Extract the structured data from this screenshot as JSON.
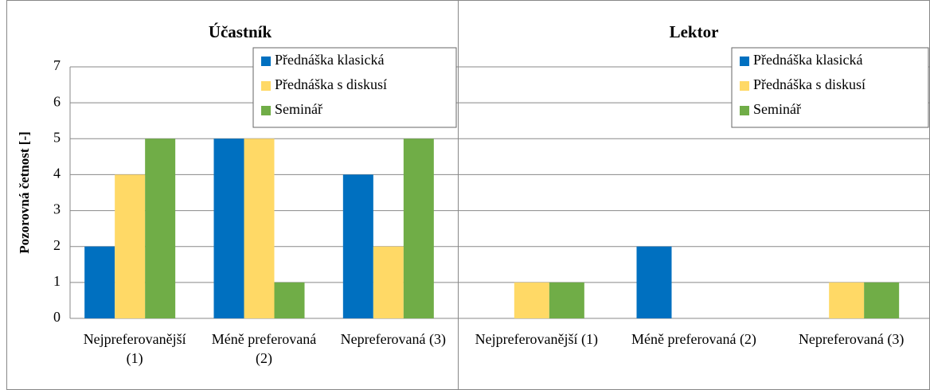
{
  "chart_data": [
    {
      "type": "bar",
      "title": "Účastník",
      "ylabel": "Pozorovná četnost [-]",
      "categories": [
        "Nejpreferovanější (1)",
        "Méně preferovaná (2)",
        "Nepreferovaná (3)"
      ],
      "series": [
        {
          "name": "Přednáška klasická",
          "color": "#0070c0",
          "values": [
            2,
            5,
            4
          ]
        },
        {
          "name": "Přednáška s diskusí",
          "color": "#ffd966",
          "values": [
            4,
            5,
            2
          ]
        },
        {
          "name": "Seminář",
          "color": "#70ad47",
          "values": [
            5,
            1,
            5
          ]
        }
      ],
      "ylim": [
        0,
        7
      ],
      "yticks": [
        0,
        1,
        2,
        3,
        4,
        5,
        6,
        7
      ],
      "grid": true,
      "legend": "top-right"
    },
    {
      "type": "bar",
      "title": "Lektor",
      "categories": [
        "Nejpreferovanější (1)",
        "Méně preferovaná (2)",
        "Nepreferovaná (3)"
      ],
      "series": [
        {
          "name": "Přednáška klasická",
          "color": "#0070c0",
          "values": [
            0,
            2,
            0
          ]
        },
        {
          "name": "Přednáška s diskusí",
          "color": "#ffd966",
          "values": [
            1,
            0,
            1
          ]
        },
        {
          "name": "Seminář",
          "color": "#70ad47",
          "values": [
            1,
            0,
            1
          ]
        }
      ],
      "ylim": [
        0,
        7
      ],
      "yticks": [
        0,
        1,
        2,
        3,
        4,
        5,
        6,
        7
      ],
      "grid": true,
      "legend": "top-right"
    }
  ]
}
